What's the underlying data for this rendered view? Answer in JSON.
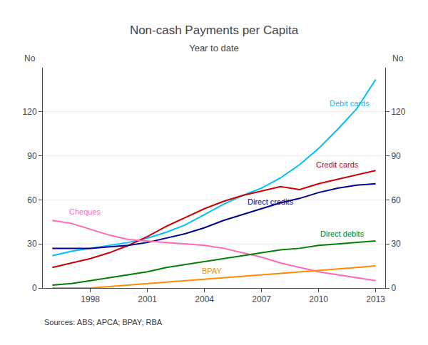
{
  "chart_data": {
    "type": "line",
    "title": "Non-cash Payments per Capita",
    "subtitle": "Year to date",
    "ylabel": "No",
    "y2label": "No",
    "source": "Sources: ABS; APCA; BPAY; RBA",
    "x": [
      1996,
      1997,
      1998,
      1999,
      2000,
      2001,
      2002,
      2003,
      2004,
      2005,
      2006,
      2007,
      2008,
      2009,
      2010,
      2011,
      2012,
      2013
    ],
    "series": [
      {
        "name": "Debit cards",
        "color": "#00bfff",
        "values": [
          22,
          25,
          27,
          29,
          31,
          34,
          38,
          43,
          50,
          57,
          63,
          68,
          75,
          84,
          95,
          108,
          122,
          142
        ]
      },
      {
        "name": "Credit cards",
        "color": "#cc0000",
        "values": [
          14,
          17,
          20,
          24,
          29,
          35,
          42,
          48,
          54,
          59,
          63,
          66,
          69,
          67,
          71,
          74,
          77,
          80
        ]
      },
      {
        "name": "Direct credits",
        "color": "#00008b",
        "values": [
          27,
          27,
          27,
          28,
          29,
          31,
          34,
          37,
          41,
          46,
          50,
          54,
          58,
          61,
          65,
          68,
          70,
          71
        ]
      },
      {
        "name": "Cheques",
        "color": "#ff69b4",
        "values": [
          46,
          44,
          40,
          36,
          33,
          32,
          31,
          30,
          29,
          27,
          24,
          21,
          17,
          14,
          11,
          9,
          7,
          5
        ]
      },
      {
        "name": "Direct debits",
        "color": "#008000",
        "values": [
          2,
          3,
          5,
          7,
          9,
          11,
          14,
          16,
          18,
          20,
          22,
          24,
          26,
          27,
          29,
          30,
          31,
          32
        ]
      },
      {
        "name": "BPAY",
        "color": "#ff8c00",
        "values": [
          0,
          0,
          0,
          1,
          2,
          3,
          4,
          5,
          6,
          7,
          8,
          9,
          10,
          11,
          12,
          13,
          14,
          15
        ]
      }
    ],
    "annotations": [
      {
        "text": "Debit cards",
        "x": 2010.5,
        "y": 122,
        "color": "#00bfff"
      },
      {
        "text": "Credit cards",
        "x": 2009.8,
        "y": 80,
        "color": "#cc0000"
      },
      {
        "text": "Direct credits",
        "x": 2006.2,
        "y": 55,
        "color": "#00008b"
      },
      {
        "text": "Cheques",
        "x": 1996.8,
        "y": 48,
        "color": "#ff69b4"
      },
      {
        "text": "Direct debits",
        "x": 2010.0,
        "y": 33,
        "color": "#008000"
      },
      {
        "text": "BPAY",
        "x": 2003.8,
        "y": 8,
        "color": "#ff8c00"
      }
    ],
    "xlim": [
      1995.5,
      2013.5
    ],
    "xticks": [
      1998,
      2001,
      2004,
      2007,
      2010,
      2013
    ],
    "ylim": [
      0,
      150
    ],
    "yticks": [
      0,
      30,
      60,
      90,
      120
    ],
    "y2lim": [
      0,
      150
    ],
    "y2ticks": [
      0,
      30,
      60,
      90,
      120
    ],
    "grid": true
  }
}
